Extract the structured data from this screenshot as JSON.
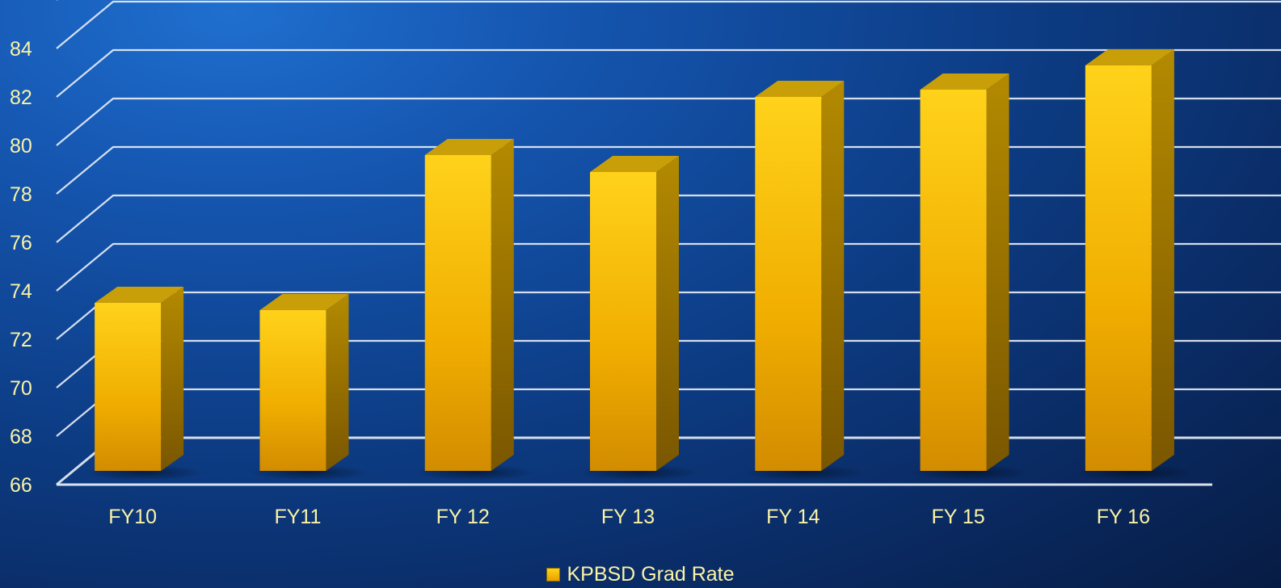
{
  "chart_data": {
    "type": "bar",
    "title": "",
    "xlabel": "",
    "ylabel": "",
    "categories": [
      "FY10",
      "FY11",
      "FY 12",
      "FY 13",
      "FY 14",
      "FY 15",
      "FY 16"
    ],
    "series": [
      {
        "name": "KPBSD Grad Rate",
        "values": [
          72.9,
          72.6,
          79.0,
          78.3,
          81.4,
          81.7,
          82.7
        ]
      }
    ],
    "ylim": [
      66,
      84
    ],
    "yticks": [
      66,
      68,
      70,
      72,
      74,
      76,
      78,
      80,
      82,
      84
    ],
    "grid": true,
    "legend_position": "bottom",
    "three_d": true,
    "colors": {
      "bar_top": "#ffd21a",
      "bar_bottom": "#dd9300",
      "bar_side": "#9a7300",
      "bar_cap": "#c89f08",
      "gridline": "#e6ecf5",
      "label": "#fbf3a6"
    }
  }
}
